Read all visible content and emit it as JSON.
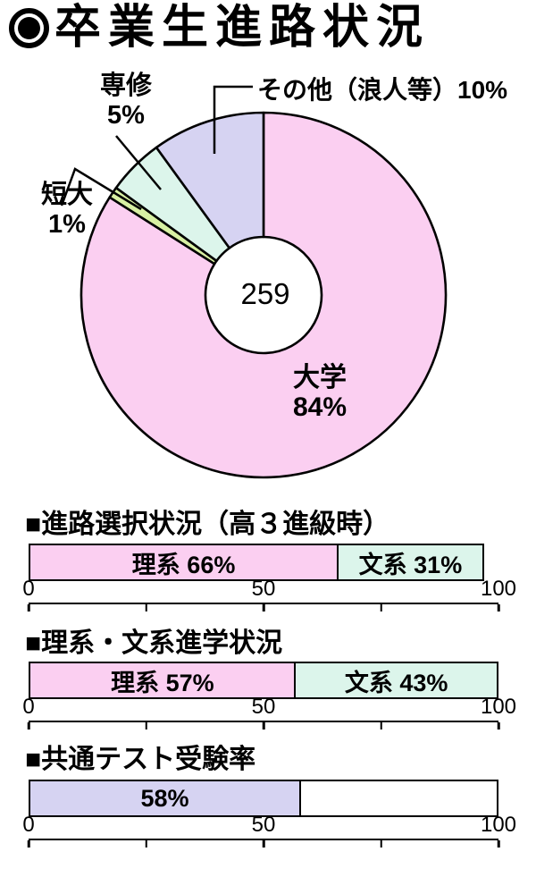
{
  "page_title": "卒業生進路状況",
  "donut": {
    "center_value": "259",
    "slices": [
      {
        "name": "university",
        "label": "大学",
        "value": 84,
        "value_label": "84%",
        "color": "#FBCFF1"
      },
      {
        "name": "junior-college",
        "label": "短大",
        "value": 1,
        "value_label": "1%",
        "color": "#D8F0A3"
      },
      {
        "name": "vocational",
        "label": "専修",
        "value": 5,
        "value_label": "5%",
        "color": "#DCF5EB"
      },
      {
        "name": "other",
        "label": "その他（浪人等）",
        "value": 10,
        "value_label": "10%",
        "color": "#D6D3F2"
      }
    ]
  },
  "bar_charts": [
    {
      "heading": "■進路選択状況（高３進級時）",
      "track_outline": false,
      "segments": [
        {
          "label": "理系 66%",
          "value": 66,
          "color": "#FBCFF1"
        },
        {
          "label": "文系 31%",
          "value": 31,
          "color": "#DCF5EB"
        }
      ],
      "axis": {
        "labels": [
          {
            "pos": 0,
            "text": "0"
          },
          {
            "pos": 50,
            "text": "50"
          },
          {
            "pos": 100,
            "text": "100"
          }
        ],
        "ticks": [
          0,
          25,
          50,
          75,
          100
        ]
      }
    },
    {
      "heading": "■理系・文系進学状況",
      "track_outline": false,
      "segments": [
        {
          "label": "理系 57%",
          "value": 57,
          "color": "#FBCFF1"
        },
        {
          "label": "文系 43%",
          "value": 43,
          "color": "#DCF5EB"
        }
      ],
      "axis": {
        "labels": [
          {
            "pos": 0,
            "text": "0"
          },
          {
            "pos": 50,
            "text": "50"
          },
          {
            "pos": 100,
            "text": "100"
          }
        ],
        "ticks": [
          0,
          25,
          50,
          75,
          100
        ]
      }
    },
    {
      "heading": "■共通テスト受験率",
      "track_outline": true,
      "segments": [
        {
          "label": "58%",
          "value": 58,
          "color": "#D6D3F2"
        }
      ],
      "axis": {
        "labels": [
          {
            "pos": 0,
            "text": "0"
          },
          {
            "pos": 50,
            "text": "50"
          },
          {
            "pos": 100,
            "text": "100"
          }
        ],
        "ticks": [
          0,
          25,
          50,
          75,
          100
        ]
      }
    }
  ],
  "chart_data": [
    {
      "type": "pie",
      "subtype": "donut",
      "title": "卒業生進路状況",
      "labels": [
        "大学",
        "短大",
        "専修",
        "その他（浪人等）"
      ],
      "values": [
        84,
        1,
        5,
        10
      ],
      "unit": "%",
      "center_total": 259,
      "start_angle_deg": 0,
      "direction": "clockwise",
      "colors": [
        "#FBCFF1",
        "#D8F0A3",
        "#DCF5EB",
        "#D6D3F2"
      ]
    },
    {
      "type": "bar",
      "orientation": "horizontal",
      "stacked": true,
      "title": "進路選択状況（高３進級時）",
      "series": [
        {
          "name": "理系",
          "values": [
            66
          ]
        },
        {
          "name": "文系",
          "values": [
            31
          ]
        }
      ],
      "xlim": [
        0,
        100
      ],
      "xticks": [
        0,
        25,
        50,
        75,
        100
      ],
      "xtick_labels": [
        "0",
        "",
        "50",
        "",
        "100"
      ]
    },
    {
      "type": "bar",
      "orientation": "horizontal",
      "stacked": true,
      "title": "理系・文系進学状況",
      "series": [
        {
          "name": "理系",
          "values": [
            57
          ]
        },
        {
          "name": "文系",
          "values": [
            43
          ]
        }
      ],
      "xlim": [
        0,
        100
      ],
      "xticks": [
        0,
        25,
        50,
        75,
        100
      ],
      "xtick_labels": [
        "0",
        "",
        "50",
        "",
        "100"
      ]
    },
    {
      "type": "bar",
      "orientation": "horizontal",
      "stacked": false,
      "title": "共通テスト受験率",
      "series": [
        {
          "name": "受験率",
          "values": [
            58
          ]
        }
      ],
      "xlim": [
        0,
        100
      ],
      "xticks": [
        0,
        25,
        50,
        75,
        100
      ],
      "xtick_labels": [
        "0",
        "",
        "50",
        "",
        "100"
      ]
    }
  ]
}
